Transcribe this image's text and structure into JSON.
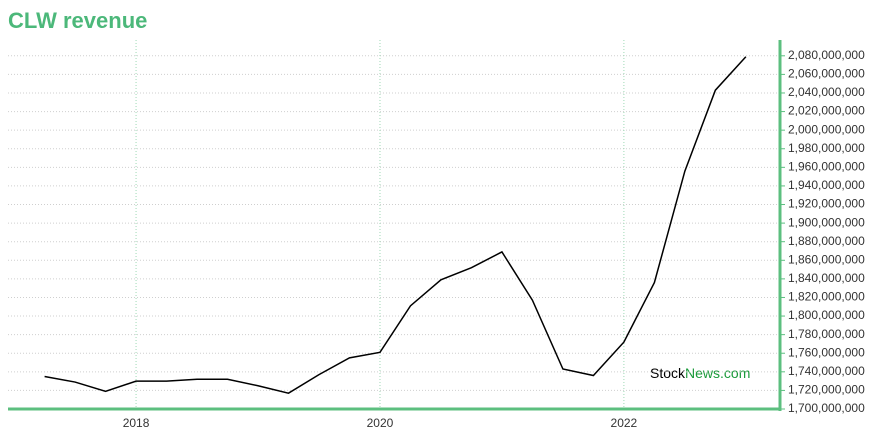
{
  "chart_data": {
    "type": "line",
    "title": "CLW revenue",
    "x": [
      2017.25,
      2017.5,
      2017.75,
      2018.0,
      2018.25,
      2018.5,
      2018.75,
      2019.0,
      2019.25,
      2019.5,
      2019.75,
      2020.0,
      2020.25,
      2020.5,
      2020.75,
      2021.0,
      2021.25,
      2021.5,
      2021.75,
      2022.0,
      2022.25,
      2022.5,
      2022.75,
      2023.0
    ],
    "series": [
      {
        "name": "CLW revenue",
        "color": "#000000",
        "values": [
          1735000000,
          1729000000,
          1719000000,
          1730000000,
          1730000000,
          1732000000,
          1732000000,
          1725000000,
          1717000000,
          1737000000,
          1755000000,
          1761000000,
          1811000000,
          1839000000,
          1852000000,
          1869000000,
          1817000000,
          1743000000,
          1736000000,
          1772000000,
          1836000000,
          1956000000,
          2043000000,
          2079000000
        ]
      }
    ],
    "xlim": [
      2016.95,
      2023.28
    ],
    "xticks": [
      2018,
      2020,
      2022
    ],
    "ylim": [
      1700000000,
      2097000000
    ],
    "yticks": [
      {
        "value": 1700000000,
        "label": "1,700,000,000"
      },
      {
        "value": 1720000000,
        "label": "1,720,000,000"
      },
      {
        "value": 1740000000,
        "label": "1,740,000,000"
      },
      {
        "value": 1760000000,
        "label": "1,760,000,000"
      },
      {
        "value": 1780000000,
        "label": "1,780,000,000"
      },
      {
        "value": 1800000000,
        "label": "1,800,000,000"
      },
      {
        "value": 1820000000,
        "label": "1,820,000,000"
      },
      {
        "value": 1840000000,
        "label": "1,840,000,000"
      },
      {
        "value": 1860000000,
        "label": "1,860,000,000"
      },
      {
        "value": 1880000000,
        "label": "1,880,000,000"
      },
      {
        "value": 1900000000,
        "label": "1,900,000,000"
      },
      {
        "value": 1920000000,
        "label": "1,920,000,000"
      },
      {
        "value": 1940000000,
        "label": "1,940,000,000"
      },
      {
        "value": 1960000000,
        "label": "1,960,000,000"
      },
      {
        "value": 1980000000,
        "label": "1,980,000,000"
      },
      {
        "value": 2000000000,
        "label": "2,000,000,000"
      },
      {
        "value": 2020000000,
        "label": "2,020,000,000"
      },
      {
        "value": 2040000000,
        "label": "2,040,000,000"
      },
      {
        "value": 2060000000,
        "label": "2,060,000,000"
      },
      {
        "value": 2080000000,
        "label": "2,080,000,000"
      }
    ],
    "grid": true,
    "axis_color": "#5cbf7f"
  },
  "watermark": {
    "part1": "Stock",
    "part2": "News.com"
  }
}
